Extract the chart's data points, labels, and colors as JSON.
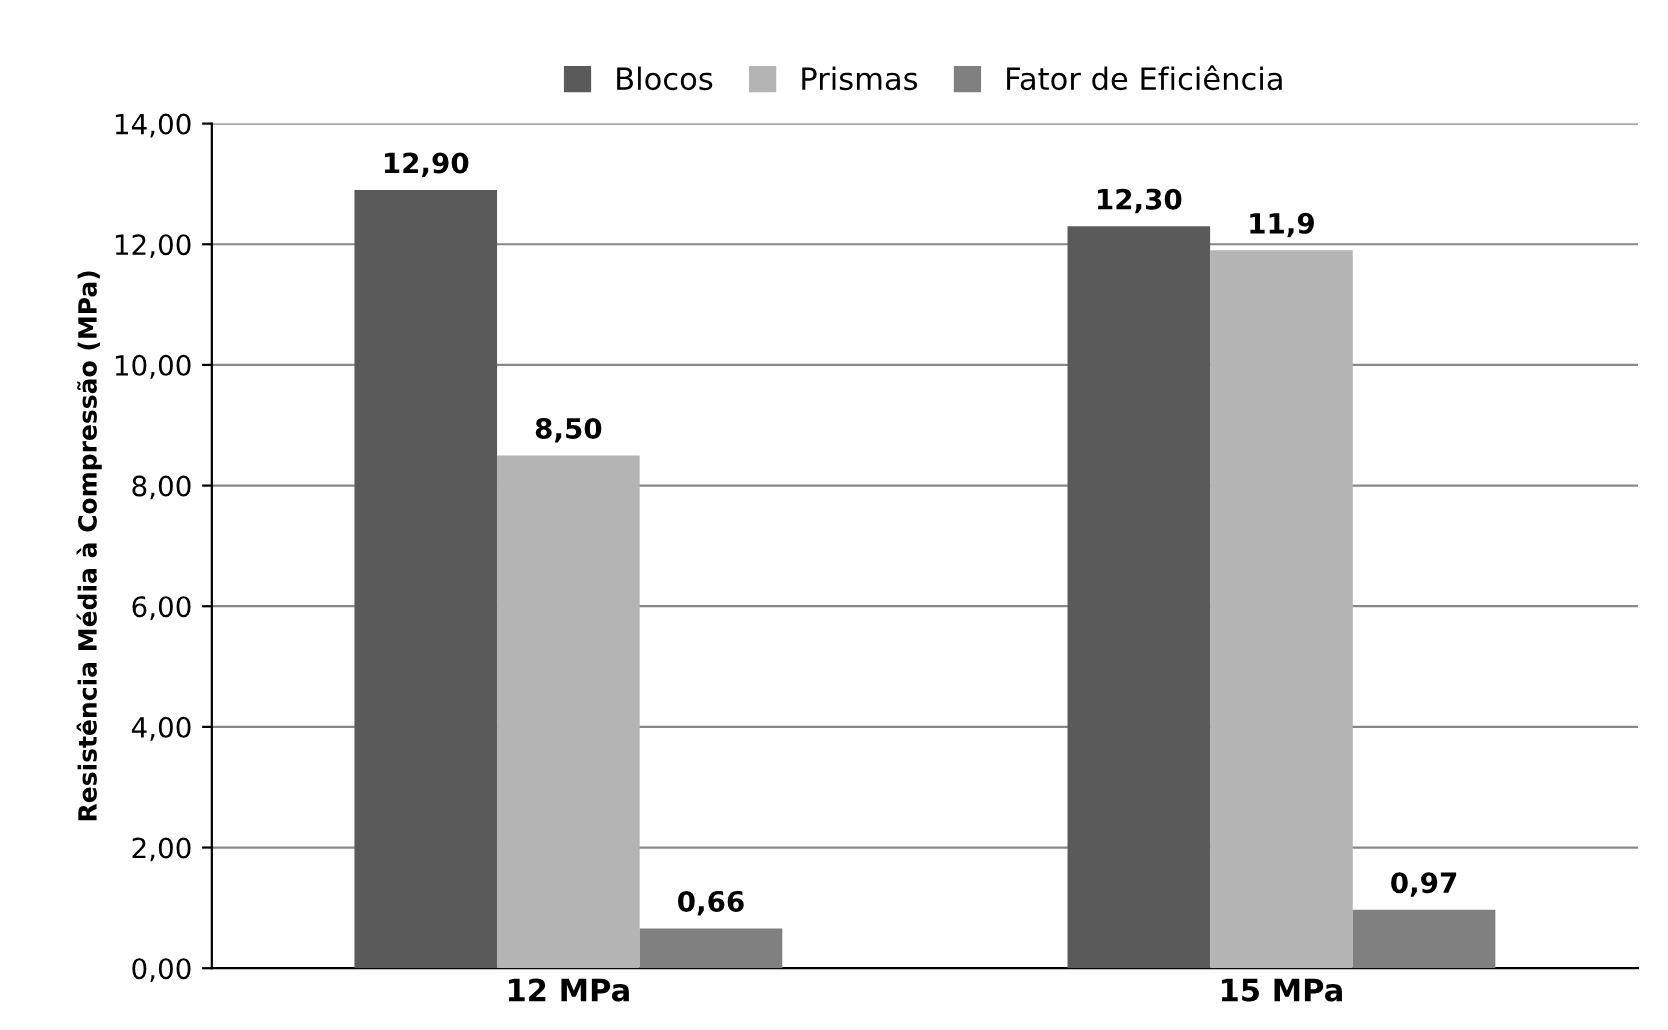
{
  "chart_data": {
    "type": "bar",
    "ylabel": "Resistência Média à Compressão (MPa)",
    "categories": [
      "12 MPa",
      "15 MPa"
    ],
    "series": [
      {
        "name": "Blocos",
        "color": "#5a5a5a",
        "values": [
          12.9,
          12.3
        ],
        "value_labels": [
          "12,90",
          "12,30"
        ]
      },
      {
        "name": "Prismas",
        "color": "#b4b4b4",
        "values": [
          8.5,
          11.9
        ],
        "value_labels": [
          "8,50",
          "11,9"
        ]
      },
      {
        "name": "Fator de Eficiência",
        "color": "#808080",
        "values": [
          0.66,
          0.97
        ],
        "value_labels": [
          "0,66",
          "0,97"
        ]
      }
    ],
    "ylim": [
      0,
      14
    ],
    "yticks": [
      {
        "value": 0,
        "label": "0,00"
      },
      {
        "value": 2,
        "label": "2,00"
      },
      {
        "value": 4,
        "label": "4,00"
      },
      {
        "value": 6,
        "label": "6,00"
      },
      {
        "value": 8,
        "label": "8,00"
      },
      {
        "value": 10,
        "label": "10,00"
      },
      {
        "value": 12,
        "label": "12,00"
      },
      {
        "value": 14,
        "label": "14,00"
      }
    ],
    "grid": "y",
    "legend": "top"
  }
}
